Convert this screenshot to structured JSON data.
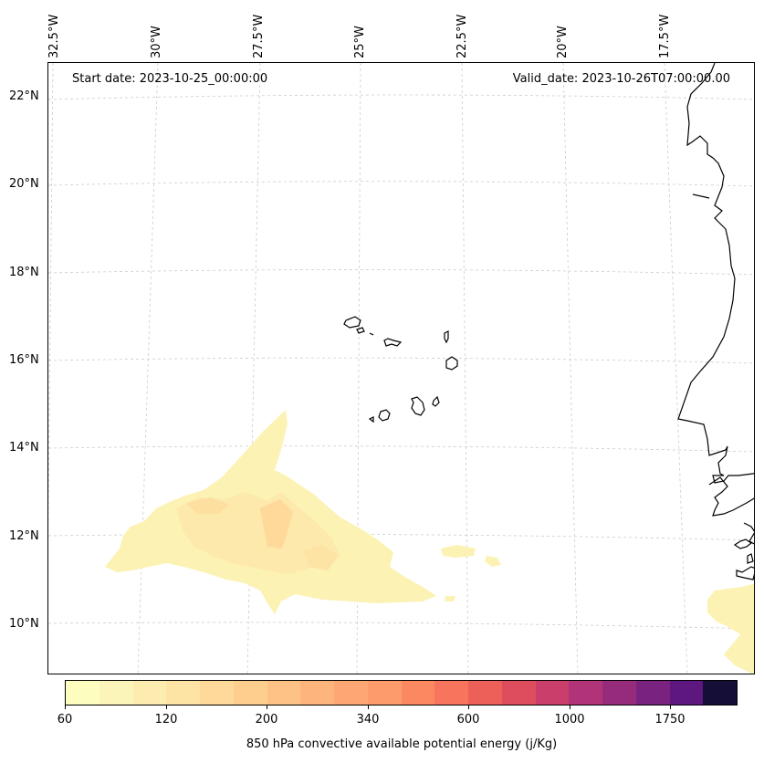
{
  "map": {
    "start_date": "Start date: 2023-10-25_00:00:00",
    "valid_date": "Valid_date: 2023-10-26T07:00:00.00",
    "lat_labels": [
      "22°N",
      "20°N",
      "18°N",
      "16°N",
      "14°N",
      "12°N",
      "10°N"
    ],
    "lon_labels": [
      "32.5°W",
      "30°W",
      "27.5°W",
      "25°W",
      "22.5°W",
      "20°W",
      "17.5°W"
    ],
    "coastline_color": "#000000",
    "gridline_color": "#cccccc"
  },
  "colorbar": {
    "title": "850 hPa convective available potential energy (j/Kg)",
    "ticks": [
      "60",
      "120",
      "200",
      "340",
      "600",
      "1000",
      "1750"
    ],
    "colors": [
      "#fcfdbf",
      "#fbf5b9",
      "#fcecb0",
      "#fde3a4",
      "#fed99a",
      "#fece8f",
      "#fec286",
      "#feb57d",
      "#fea775",
      "#fd9b6b",
      "#fb8861",
      "#f6755c",
      "#ed6059",
      "#de4d5e",
      "#ca3e6c",
      "#b13478",
      "#962b7c",
      "#7a2280",
      "#5d177f",
      "#150e37"
    ]
  }
}
